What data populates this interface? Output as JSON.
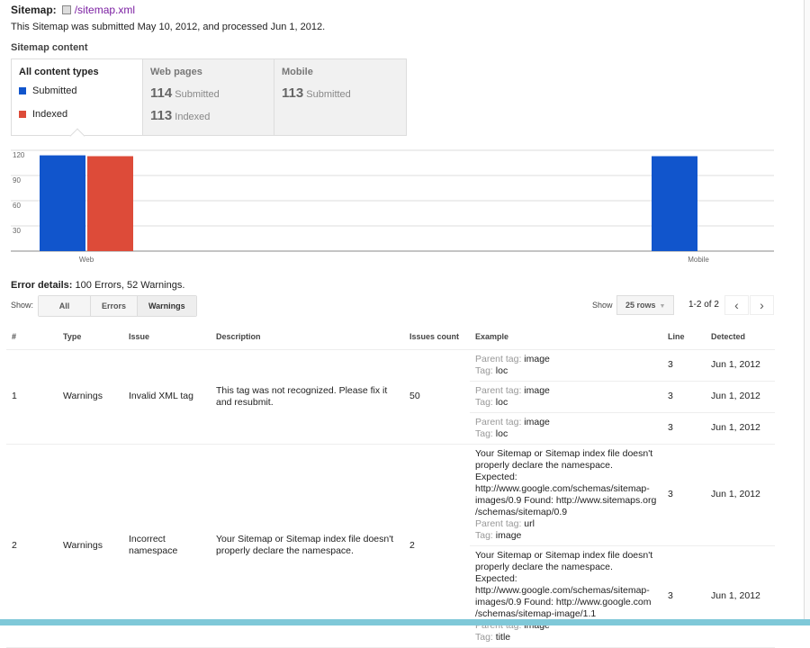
{
  "header": {
    "label": "Sitemap:",
    "link": "/sitemap.xml",
    "info": "This Sitemap was submitted May 10, 2012, and processed Jun 1, 2012."
  },
  "content": {
    "title": "Sitemap content",
    "tabs": [
      {
        "label": "All content types",
        "legend": [
          {
            "label": "Submitted",
            "color": "#1155cc"
          },
          {
            "label": "Indexed",
            "color": "#dd4b39"
          }
        ]
      },
      {
        "label": "Web pages",
        "submitted": "114",
        "submitted_label": "Submitted",
        "indexed": "113",
        "indexed_label": "Indexed"
      },
      {
        "label": "Mobile",
        "submitted": "113",
        "submitted_label": "Submitted"
      }
    ]
  },
  "chart_data": {
    "type": "bar",
    "categories": [
      "Web",
      "Mobile"
    ],
    "ylim": [
      0,
      120
    ],
    "yticks": [
      "30",
      "60",
      "90",
      "120"
    ],
    "grid": true,
    "series": [
      {
        "name": "Submitted",
        "color": "#1155cc",
        "values": [
          114,
          113
        ]
      },
      {
        "name": "Indexed",
        "color": "#dd4b39",
        "values": [
          113,
          null
        ]
      }
    ]
  },
  "errors": {
    "label": "Error details:",
    "summary": "100 Errors, 52 Warnings.",
    "show_label": "Show:",
    "filters": [
      "All",
      "Errors",
      "Warnings"
    ],
    "selected": "Warnings",
    "rows_label": "Show",
    "rows_value": "25 rows",
    "pagination": "1-2 of 2"
  },
  "table": {
    "headers": [
      "#",
      "Type",
      "Issue",
      "Description",
      "Issues count",
      "Example",
      "Line",
      "Detected"
    ],
    "rows": [
      {
        "num": "1",
        "type": "Warnings",
        "issue": "Invalid XML tag",
        "description": "This tag was not recognized. Please fix it and resubmit.",
        "count": "50",
        "examples": [
          {
            "parent": "image",
            "tag": "loc",
            "line": "3",
            "detected": "Jun 1, 2012"
          },
          {
            "parent": "image",
            "tag": "loc",
            "line": "3",
            "detected": "Jun 1, 2012"
          },
          {
            "parent": "image",
            "tag": "loc",
            "line": "3",
            "detected": "Jun 1, 2012"
          }
        ]
      },
      {
        "num": "2",
        "type": "Warnings",
        "issue": "Incorrect namespace",
        "description": "Your Sitemap or Sitemap index file doesn't properly declare the namespace.",
        "count": "2",
        "examples": [
          {
            "text": "Your Sitemap or Sitemap index file doesn't properly declare the namespace. Expected: http://www.google.com/schemas/sitemap-images/0.9 Found: http://www.sitemaps.org /schemas/sitemap/0.9",
            "parent": "url",
            "tag": "image",
            "line": "3",
            "detected": "Jun 1, 2012"
          },
          {
            "text": "Your Sitemap or Sitemap index file doesn't properly declare the namespace. Expected: http://www.google.com/schemas/sitemap-images/0.9 Found: http://www.google.com /schemas/sitemap-image/1.1",
            "parent": "image",
            "tag": "title",
            "line": "3",
            "detected": "Jun 1, 2012"
          }
        ]
      }
    ],
    "parent_label": "Parent tag:",
    "tag_label": "Tag:"
  }
}
